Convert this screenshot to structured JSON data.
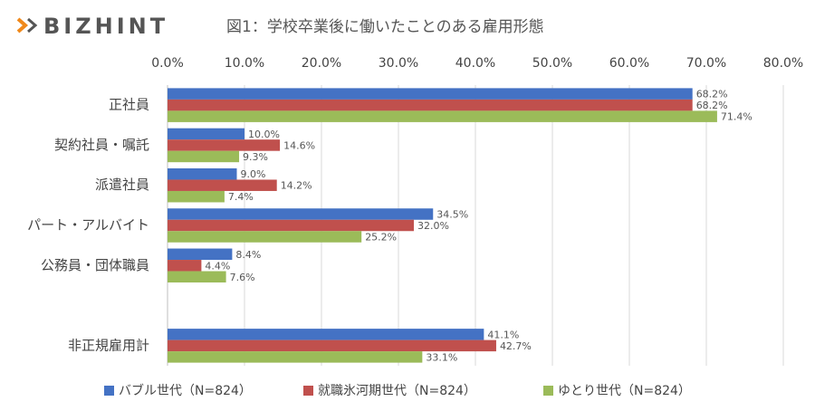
{
  "logo": "BIZHINT",
  "chart_data": {
    "type": "hbar",
    "title": "図1：学校卒業後に働いたことのある雇用形態",
    "categories": [
      "正社員",
      "契約社員・嘱託",
      "派遣社員",
      "パート・アルバイト",
      "公務員・団体職員",
      null,
      "非正規雇用計"
    ],
    "series": [
      {
        "name": "バブル世代（N=824）",
        "color": "#4472c4",
        "values": [
          68.2,
          10.0,
          9.0,
          34.5,
          8.4,
          null,
          41.1
        ],
        "value_labels": [
          "68.2%",
          "10.0%",
          "9.0%",
          "34.5%",
          "8.4%",
          null,
          "41.1%"
        ]
      },
      {
        "name": "就職氷河期世代（N=824）",
        "color": "#c0504d",
        "values": [
          68.2,
          14.6,
          14.2,
          32.0,
          4.4,
          null,
          42.7
        ],
        "value_labels": [
          "68.2%",
          "14.6%",
          "14.2%",
          "32.0%",
          "4.4%",
          null,
          "42.7%"
        ]
      },
      {
        "name": "ゆとり世代（N=824）",
        "color": "#9bbb59",
        "values": [
          71.4,
          9.3,
          7.4,
          25.2,
          7.6,
          null,
          33.1
        ],
        "value_labels": [
          "71.4%",
          "9.3%",
          "7.4%",
          "25.2%",
          "7.6%",
          null,
          "33.1%"
        ]
      }
    ],
    "xlim": [
      0,
      80
    ],
    "xticks": [
      {
        "value": 0,
        "label": "0.0%"
      },
      {
        "value": 10,
        "label": "10.0%"
      },
      {
        "value": 20,
        "label": "20.0%"
      },
      {
        "value": 30,
        "label": "30.0%"
      },
      {
        "value": 40,
        "label": "40.0%"
      },
      {
        "value": 50,
        "label": "50.0%"
      },
      {
        "value": 60,
        "label": "60.0%"
      },
      {
        "value": 70,
        "label": "70.0%"
      },
      {
        "value": 80,
        "label": "80.0%"
      }
    ],
    "grid": true,
    "legend": "bottom"
  }
}
